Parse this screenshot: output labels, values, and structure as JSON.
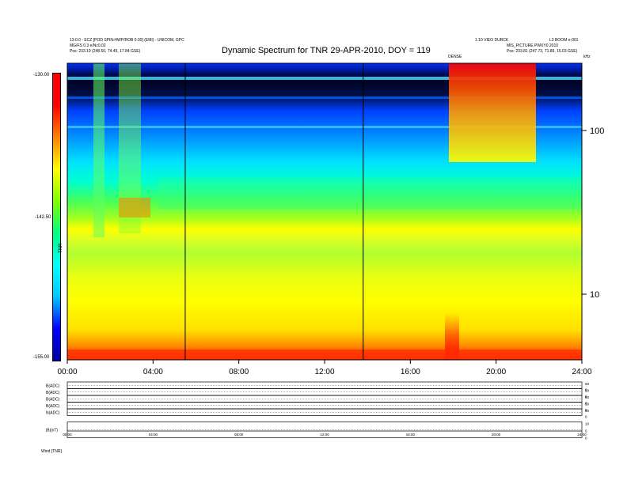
{
  "chart_data": {
    "type": "heatmap",
    "title": "Dynamic Spectrum for TNR 29-APR-2010, DOY = 119",
    "x_ticks": [
      "00:00",
      "04:00",
      "08:00",
      "12:00",
      "16:00",
      "20:00",
      "24:00"
    ],
    "x_range_hours": [
      0,
      24
    ],
    "y_right_ticks": [
      "100",
      "10"
    ],
    "y_scale": "log",
    "colorbar": {
      "label": "TNR",
      "ticks": [
        "-130.00",
        "-142.50",
        "-155.00"
      ],
      "range": [
        -155.0,
        -130.0
      ],
      "colors": [
        "#0000a0",
        "#0000ff",
        "#00c8ff",
        "#00ffff",
        "#00ff80",
        "#80ff00",
        "#ffff00",
        "#ff8000",
        "#ff0000",
        "#ff0000"
      ]
    },
    "vertical_markers_hours": [
      5.5,
      13.8
    ],
    "red_bottom_band": "red",
    "header_left": [
      "13:0.0 - ECZ [POD SPIN:HWP/ROB 0:30] (EMI) - UNICOM, GPC",
      "MG/FS 0.3 e/Nc0.02",
      "Pos: 233.19 (248.50, 74.49, 17.84 GSE)"
    ],
    "header_right": [
      "1.10 VIEO DURCK",
      "MIS_PICTURE PWXY0 2010",
      "Pos: 233.81 (247.73, 71.89, 15.03 GSE)"
    ],
    "header_far_right": "L3 BOOM e-001",
    "small_marker_text": "DENSE",
    "right_top_label": "kHz",
    "panels": [
      {
        "label": "B(ADC)",
        "right_ticks": [
          "50",
          "0"
        ]
      },
      {
        "label": "B(ADC)",
        "right_ticks": [
          "50",
          "0"
        ]
      },
      {
        "label": "B(ADC)",
        "right_ticks": [
          "50",
          "0"
        ]
      },
      {
        "label": "B(ADC)",
        "right_ticks": [
          "50",
          "0"
        ]
      },
      {
        "label": "N(ADC)",
        "right_ticks": [
          "50",
          "0"
        ]
      },
      {
        "label": "|B|(nT)",
        "right_ticks": [
          "10",
          "5",
          "0"
        ]
      }
    ],
    "bottom_axis_labels": [
      "00:00",
      "04:00",
      "08:00",
      "12:00",
      "16:00",
      "20:00",
      "24:00"
    ],
    "bottom_caption": "Wind    [TNR]"
  }
}
